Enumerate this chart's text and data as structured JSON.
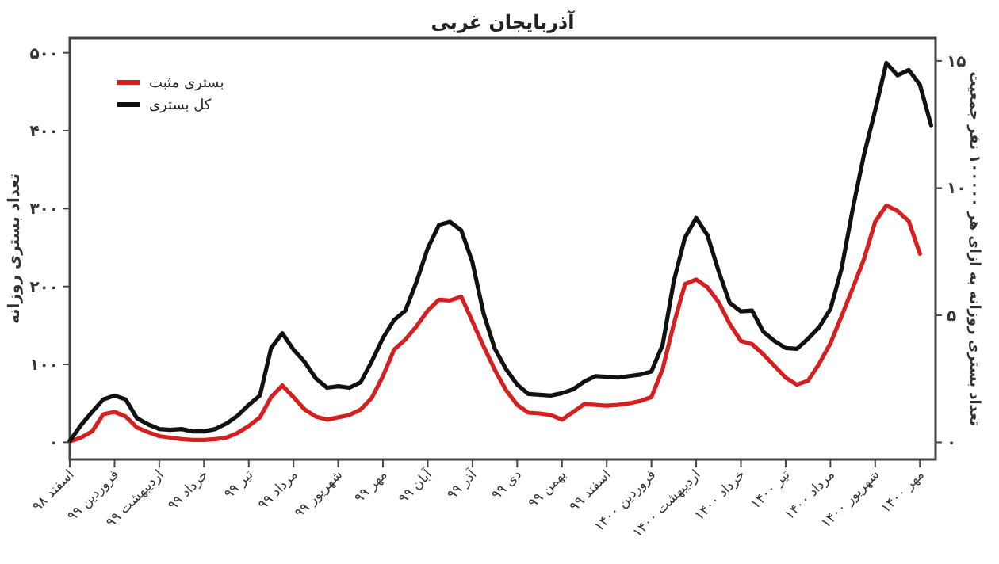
{
  "chart_data": {
    "type": "line",
    "title": "آذربایجان غربی",
    "ylabel": "تعداد بستری روزانه",
    "y2label": "تعداد بستری روزانه به ازای هر ۱۰۰۰۰۰ نفر جمعیت",
    "categories": [
      "اسفند ۹۸",
      null,
      null,
      null,
      "فروردین ۹۹",
      null,
      null,
      null,
      "اردیبهشت ۹۹",
      null,
      null,
      null,
      "خرداد ۹۹",
      null,
      null,
      null,
      "تیر ۹۹",
      null,
      null,
      null,
      "مرداد ۹۹",
      null,
      null,
      null,
      "شهریور ۹۹",
      null,
      null,
      null,
      "مهر ۹۹",
      null,
      null,
      null,
      "آبان ۹۹",
      null,
      null,
      null,
      "آذر ۹۹",
      null,
      null,
      null,
      "دی ۹۹",
      null,
      null,
      null,
      "بهمن ۹۹",
      null,
      null,
      null,
      "اسفند ۹۹",
      null,
      null,
      null,
      "فروردین ۱۴۰۰",
      null,
      null,
      null,
      "اردیبهشت ۱۴۰۰",
      null,
      null,
      null,
      "خرداد ۱۴۰۰",
      null,
      null,
      null,
      "تیر ۱۴۰۰",
      null,
      null,
      null,
      "مرداد ۱۴۰۰",
      null,
      null,
      null,
      "شهریور ۱۴۰۰",
      null,
      null,
      null,
      "مهر ۱۴۰۰",
      null
    ],
    "ylim": [
      -22,
      519
    ],
    "y2lim": [
      -0.67,
      15.9
    ],
    "yticks": [
      {
        "value": 0,
        "label": "۰"
      },
      {
        "value": 100,
        "label": "۱۰۰"
      },
      {
        "value": 200,
        "label": "۲۰۰"
      },
      {
        "value": 300,
        "label": "۳۰۰"
      },
      {
        "value": 400,
        "label": "۴۰۰"
      },
      {
        "value": 500,
        "label": "۵۰۰"
      }
    ],
    "y2ticks": [
      {
        "value": 0,
        "label": "۰"
      },
      {
        "value": 5,
        "label": "۵"
      },
      {
        "value": 10,
        "label": "۱۰"
      },
      {
        "value": 15,
        "label": "۱۵"
      }
    ],
    "legend": "top left",
    "series": [
      {
        "name": "بستری مثبت",
        "color": "#d62020",
        "values": [
          1,
          6,
          14,
          36,
          39,
          33,
          19,
          13,
          8,
          6,
          4,
          3,
          3,
          4,
          6,
          12,
          21,
          32,
          58,
          73,
          58,
          42,
          33,
          29,
          32,
          35,
          42,
          57,
          85,
          119,
          132,
          149,
          169,
          183,
          182,
          187,
          155,
          123,
          93,
          67,
          48,
          38,
          37,
          35,
          29,
          39,
          49,
          48,
          47,
          48,
          50,
          53,
          58,
          94,
          152,
          203,
          209,
          199,
          180,
          152,
          130,
          126,
          113,
          98,
          83,
          74,
          79,
          101,
          127,
          162,
          198,
          235,
          283,
          304,
          297,
          284,
          242,
          null
        ]
      },
      {
        "name": "کل بستری",
        "color": "#111111",
        "values": [
          2,
          22,
          39,
          55,
          60,
          55,
          31,
          23,
          17,
          16,
          17,
          14,
          14,
          17,
          24,
          34,
          48,
          60,
          121,
          140,
          119,
          103,
          82,
          70,
          72,
          70,
          77,
          104,
          134,
          157,
          169,
          206,
          249,
          279,
          283,
          272,
          231,
          165,
          120,
          94,
          74,
          62,
          61,
          60,
          63,
          68,
          78,
          85,
          84,
          83,
          85,
          87,
          91,
          125,
          207,
          263,
          288,
          266,
          220,
          179,
          168,
          169,
          142,
          130,
          121,
          120,
          133,
          148,
          171,
          223,
          300,
          369,
          426,
          487,
          471,
          478,
          459,
          407
        ]
      }
    ]
  }
}
